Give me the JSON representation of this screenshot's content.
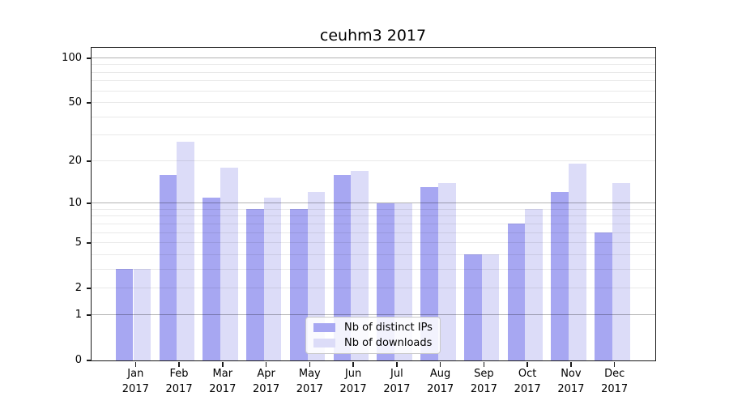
{
  "title": "ceuhm3 2017",
  "colors": {
    "bar_distinct_ips": "#a7a7f2",
    "bar_downloads": "#dcdcf8",
    "major_grid": "rgba(0,0,0,0.30)",
    "minor_grid": "rgba(0,0,0,0.085)",
    "axis": "#1a1a1a",
    "legend_border": "#c9c9c9"
  },
  "chart_data": {
    "type": "bar",
    "title": "ceuhm3 2017",
    "categories": [
      "Jan",
      "Feb",
      "Mar",
      "Apr",
      "May",
      "Jun",
      "Jul",
      "Aug",
      "Sep",
      "Oct",
      "Nov",
      "Dec"
    ],
    "category_year": "2017",
    "x_tick_labels": [
      "Jan 2017",
      "Feb 2017",
      "Mar 2017",
      "Apr 2017",
      "May 2017",
      "Jun 2017",
      "Jul 2017",
      "Aug 2017",
      "Sep 2017",
      "Oct 2017",
      "Nov 2017",
      "Dec 2017"
    ],
    "series": [
      {
        "name": "Nb of distinct IPs",
        "color": "#a7a7f2",
        "values": [
          3,
          16,
          11,
          9,
          9,
          16,
          10,
          13,
          4,
          7,
          12,
          6
        ]
      },
      {
        "name": "Nb of downloads",
        "color": "#dcdcf8",
        "values": [
          3,
          27,
          18,
          11,
          12,
          17,
          10,
          14,
          4,
          9,
          19,
          14
        ]
      }
    ],
    "y_axis": {
      "scale": "log10(1+value)",
      "tick_values": [
        100,
        50,
        20,
        10,
        5,
        2,
        1,
        0
      ],
      "tick_labels": [
        "100",
        "50",
        "20",
        "10",
        "5",
        "2",
        "1",
        "0"
      ],
      "major_gridlines": [
        1,
        10,
        100
      ],
      "minor_gridlines": [
        2,
        3,
        4,
        5,
        6,
        7,
        8,
        9,
        20,
        30,
        40,
        50,
        60,
        70,
        80,
        90
      ],
      "range": [
        0,
        117
      ]
    },
    "legend": {
      "position": "lower center",
      "entries": [
        "Nb of distinct IPs",
        "Nb of downloads"
      ]
    },
    "grid": true
  }
}
